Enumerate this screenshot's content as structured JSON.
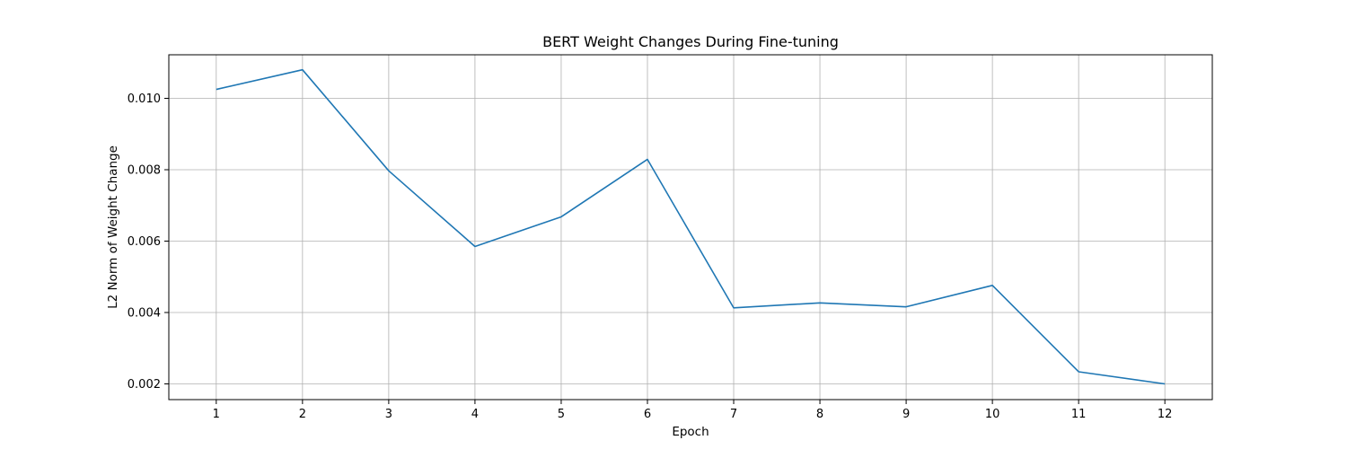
{
  "chart_data": {
    "type": "line",
    "title": "BERT Weight Changes During Fine-tuning",
    "xlabel": "Epoch",
    "ylabel": "L2 Norm of Weight Change",
    "x": [
      1,
      2,
      3,
      4,
      5,
      6,
      7,
      8,
      9,
      10,
      11,
      12
    ],
    "x_tick_labels": [
      "1",
      "2",
      "3",
      "4",
      "5",
      "6",
      "7",
      "8",
      "9",
      "10",
      "11",
      "12"
    ],
    "y_ticks": [
      0.002,
      0.004,
      0.006,
      0.008,
      0.01
    ],
    "y_tick_labels": [
      "0.002",
      "0.004",
      "0.006",
      "0.008",
      "0.010"
    ],
    "xlim": [
      0.45,
      12.55
    ],
    "ylim": [
      0.00156,
      0.01122
    ],
    "series": [
      {
        "values": [
          0.01025,
          0.0108,
          0.00797,
          0.00585,
          0.00668,
          0.00829,
          0.00413,
          0.00427,
          0.00416,
          0.00476,
          0.00234,
          0.002
        ],
        "color": "#1f77b4"
      }
    ],
    "grid": true,
    "legend": "none"
  }
}
